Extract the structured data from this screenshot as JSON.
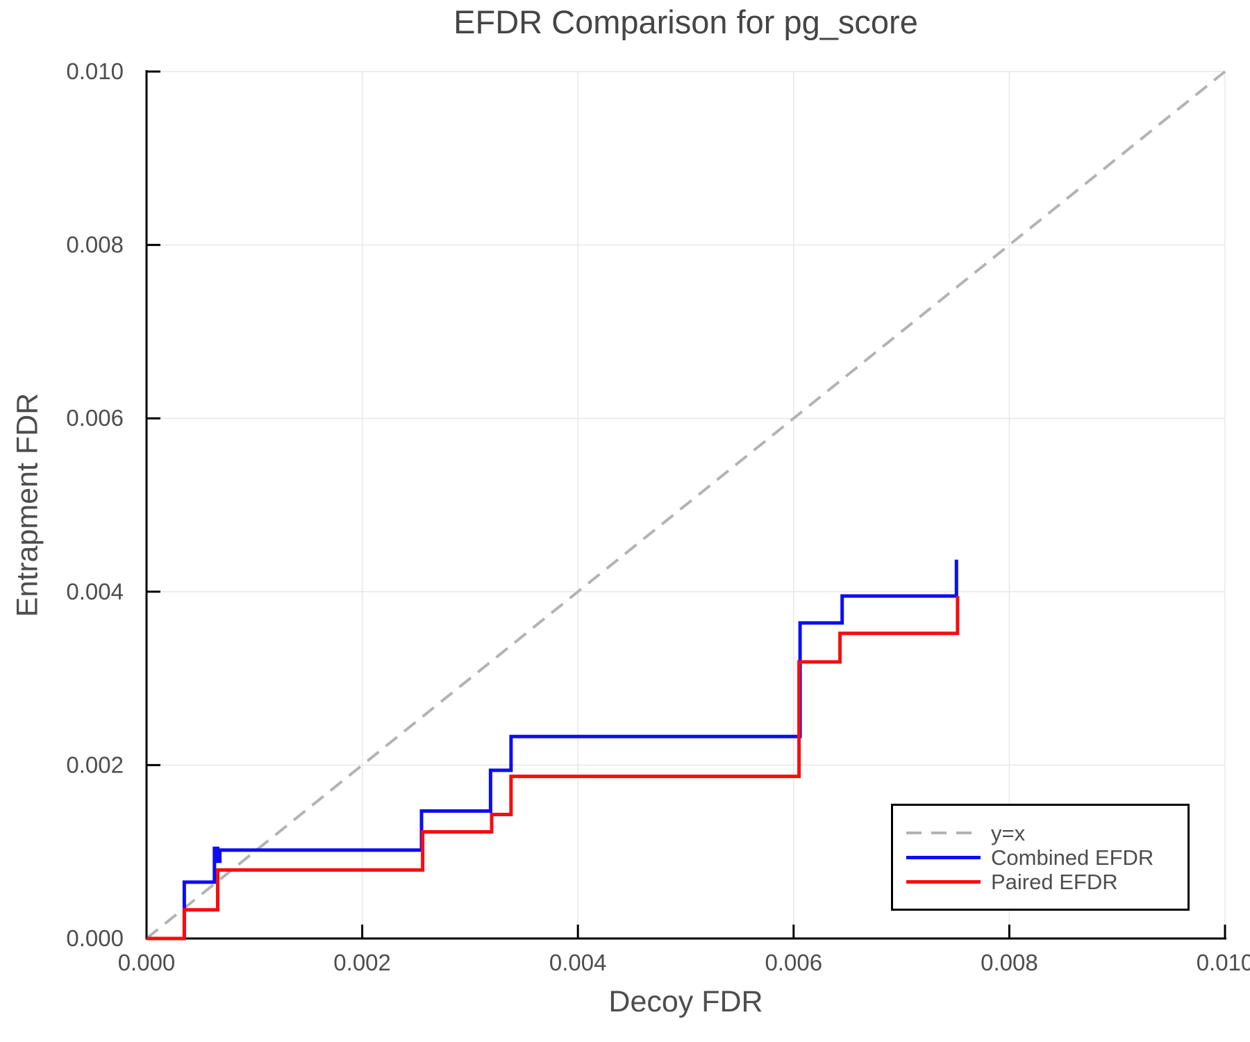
{
  "title": "EFDR Comparison for pg_score",
  "chart_data": {
    "type": "line",
    "subtype": "step-post",
    "title": "EFDR Comparison for pg_score",
    "xlabel": "Decoy FDR",
    "ylabel": "Entrapment FDR",
    "xlim": [
      0.0,
      0.01
    ],
    "ylim": [
      0.0,
      0.01
    ],
    "xticks": [
      0.0,
      0.002,
      0.004,
      0.006,
      0.008,
      0.01
    ],
    "xtick_labels": [
      "0.000",
      "0.002",
      "0.004",
      "0.006",
      "0.008",
      "0.010"
    ],
    "yticks": [
      0.0,
      0.002,
      0.004,
      0.006,
      0.008,
      0.01
    ],
    "ytick_labels": [
      "0.000",
      "0.002",
      "0.004",
      "0.006",
      "0.008",
      "0.010"
    ],
    "grid": true,
    "grid_color": "#e7e7e7",
    "axis_color": "#000000",
    "text_color": "#4d4d4d",
    "legend_position": "bottom-right",
    "reference_line": {
      "name": "y=x",
      "style": "dashed",
      "color": "#b3b3b3",
      "from": [
        0.0,
        0.0
      ],
      "to": [
        0.01,
        0.01
      ]
    },
    "series": [
      {
        "name": "Combined EFDR",
        "color": "#0d0df2",
        "style": "step",
        "start": [
          0.0,
          0.0
        ],
        "steps": [
          [
            0.00035,
            0.00065
          ],
          [
            0.00063,
            0.00104
          ],
          [
            0.00066,
            0.00089
          ],
          [
            0.00068,
            0.00102
          ],
          [
            0.00255,
            0.00147
          ],
          [
            0.00319,
            0.00194
          ],
          [
            0.00338,
            0.00233
          ],
          [
            0.00606,
            0.00364
          ],
          [
            0.00645,
            0.00395
          ],
          [
            0.00751,
            0.00437
          ]
        ]
      },
      {
        "name": "Paired EFDR",
        "color": "#f70d0d",
        "style": "step",
        "start": [
          0.0,
          0.0
        ],
        "steps": [
          [
            0.00035,
            0.00033
          ],
          [
            0.00066,
            0.00079
          ],
          [
            0.00256,
            0.00123
          ],
          [
            0.0032,
            0.00143
          ],
          [
            0.00338,
            0.00187
          ],
          [
            0.00605,
            0.00319
          ],
          [
            0.00643,
            0.00352
          ],
          [
            0.00752,
            0.00395
          ]
        ]
      }
    ]
  },
  "legend": {
    "items": [
      {
        "label": "y=x"
      },
      {
        "label": "Combined EFDR"
      },
      {
        "label": "Paired EFDR"
      }
    ]
  }
}
